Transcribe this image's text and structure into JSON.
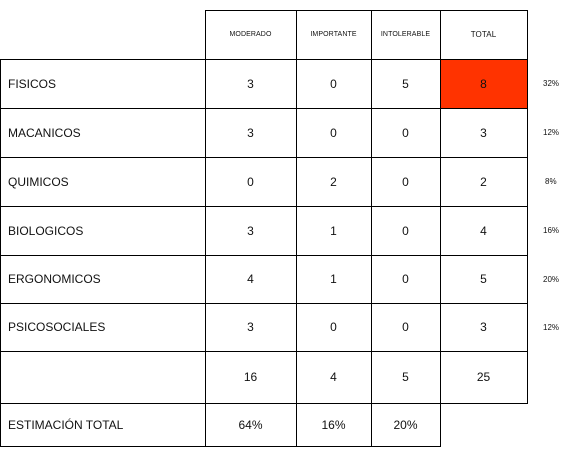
{
  "columns": [
    "MODERADO",
    "IMPORTANTE",
    "INTOLERABLE",
    "TOTAL"
  ],
  "rows": [
    {
      "label": "FISICOS",
      "values": [
        "3",
        "0",
        "5",
        "8"
      ],
      "pct": "32%"
    },
    {
      "label": "MACANICOS",
      "values": [
        "3",
        "0",
        "0",
        "3"
      ],
      "pct": "12%"
    },
    {
      "label": "QUIMICOS",
      "values": [
        "0",
        "2",
        "0",
        "2"
      ],
      "pct": "8%"
    },
    {
      "label": "BIOLOGICOS",
      "values": [
        "3",
        "1",
        "0",
        "4"
      ],
      "pct": "16%"
    },
    {
      "label": "ERGONOMICOS",
      "values": [
        "4",
        "1",
        "0",
        "5"
      ],
      "pct": "20%"
    },
    {
      "label": "PSICOSOCIALES",
      "values": [
        "3",
        "0",
        "0",
        "3"
      ],
      "pct": "12%"
    }
  ],
  "totals": [
    "16",
    "4",
    "5",
    "25"
  ],
  "estimacion": {
    "label": "ESTIMACIÓN TOTAL",
    "values": [
      "64%",
      "16%",
      "20%"
    ]
  },
  "highlight_color": "#FF3300"
}
